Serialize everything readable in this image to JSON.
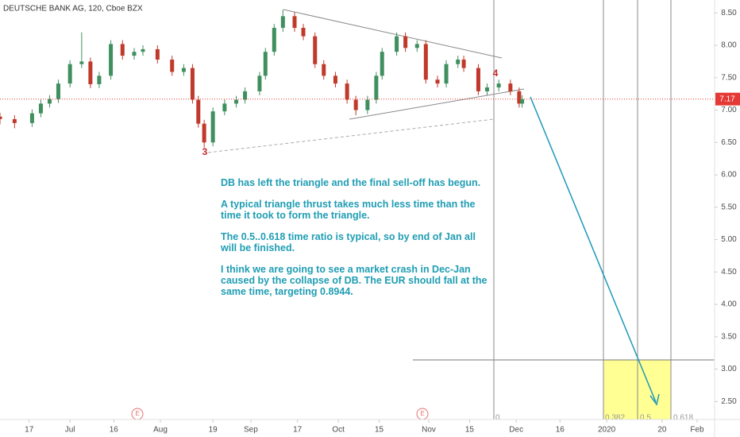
{
  "chart_data": {
    "type": "candlestick",
    "title": "DEUTSCHE BANK AG, 120, Cboe BZX",
    "x": [
      "2019-06-07",
      "2019-06-12",
      "2019-06-18",
      "2019-06-21",
      "2019-06-24",
      "2019-06-27",
      "2019-07-01",
      "2019-07-05",
      "2019-07-08",
      "2019-07-11",
      "2019-07-15",
      "2019-07-19",
      "2019-07-23",
      "2019-07-26",
      "2019-07-31",
      "2019-08-05",
      "2019-08-09",
      "2019-08-12",
      "2019-08-14",
      "2019-08-16",
      "2019-08-19",
      "2019-08-23",
      "2019-08-27",
      "2019-08-30",
      "2019-09-04",
      "2019-09-06",
      "2019-09-09",
      "2019-09-12",
      "2019-09-16",
      "2019-09-19",
      "2019-09-23",
      "2019-09-26",
      "2019-09-30",
      "2019-10-04",
      "2019-10-07",
      "2019-10-11",
      "2019-10-14",
      "2019-10-16",
      "2019-10-21",
      "2019-10-24",
      "2019-10-28",
      "2019-10-31",
      "2019-11-04",
      "2019-11-07",
      "2019-11-11",
      "2019-11-13",
      "2019-11-18",
      "2019-11-21",
      "2019-11-25",
      "2019-11-29",
      "2019-12-02",
      "2019-12-03"
    ],
    "open": [
      6.9,
      6.86,
      6.8,
      6.95,
      7.1,
      7.17,
      7.41,
      7.71,
      7.75,
      7.4,
      7.53,
      8.02,
      7.84,
      7.9,
      7.94,
      7.78,
      7.59,
      7.65,
      7.16,
      6.79,
      6.5,
      6.98,
      7.1,
      7.16,
      7.29,
      7.53,
      7.9,
      8.27,
      8.45,
      8.27,
      8.14,
      7.71,
      7.53,
      7.41,
      7.16,
      7.0,
      7.16,
      7.53,
      7.9,
      8.14,
      7.96,
      8.02,
      7.47,
      7.41,
      7.71,
      7.78,
      7.65,
      7.29,
      7.35,
      7.41,
      7.29,
      7.1
    ],
    "high": [
      6.96,
      6.92,
      7.01,
      7.16,
      7.23,
      7.47,
      7.77,
      8.2,
      7.81,
      7.59,
      8.08,
      8.08,
      7.96,
      8.0,
      8.0,
      7.84,
      7.71,
      7.71,
      7.22,
      6.85,
      7.04,
      7.16,
      7.22,
      7.35,
      7.59,
      7.96,
      8.33,
      8.55,
      8.51,
      8.33,
      8.2,
      7.77,
      7.59,
      7.47,
      7.22,
      7.22,
      7.59,
      7.96,
      8.2,
      8.2,
      8.08,
      8.08,
      7.53,
      7.77,
      7.84,
      7.84,
      7.71,
      7.41,
      7.47,
      7.47,
      7.35,
      7.23
    ],
    "low": [
      6.78,
      6.72,
      6.74,
      6.89,
      7.04,
      7.11,
      7.35,
      7.65,
      7.34,
      7.34,
      7.47,
      7.78,
      7.78,
      7.84,
      7.72,
      7.53,
      7.53,
      7.1,
      6.73,
      6.42,
      6.44,
      6.92,
      7.04,
      7.1,
      7.23,
      7.47,
      7.84,
      8.21,
      8.21,
      8.08,
      7.65,
      7.47,
      7.35,
      7.1,
      6.92,
      6.94,
      7.1,
      7.47,
      7.84,
      7.9,
      7.9,
      7.41,
      7.35,
      7.35,
      7.65,
      7.59,
      7.23,
      7.23,
      7.29,
      7.23,
      7.04,
      7.04
    ],
    "close": [
      6.86,
      6.8,
      6.95,
      7.1,
      7.17,
      7.41,
      7.71,
      7.75,
      7.4,
      7.53,
      8.02,
      7.84,
      7.9,
      7.94,
      7.78,
      7.59,
      7.65,
      7.16,
      6.79,
      6.5,
      6.98,
      7.1,
      7.16,
      7.29,
      7.53,
      7.9,
      8.27,
      8.45,
      8.27,
      8.14,
      7.71,
      7.53,
      7.41,
      7.16,
      7.0,
      7.16,
      7.53,
      7.9,
      8.14,
      7.96,
      8.02,
      7.47,
      7.41,
      7.71,
      7.78,
      7.65,
      7.29,
      7.35,
      7.41,
      7.29,
      7.1,
      7.17
    ],
    "up_color": "#3f8f5f",
    "down_color": "#c0392b",
    "last_price": 7.17,
    "last_price_color": "#e53935",
    "xlim": [
      "2019-06-07",
      "2020-02-07"
    ],
    "xticks": [
      {
        "value": "2019-06-17",
        "label": "17"
      },
      {
        "value": "2019-07-01",
        "label": "Jul"
      },
      {
        "value": "2019-07-16",
        "label": "16"
      },
      {
        "value": "2019-08-01",
        "label": "Aug"
      },
      {
        "value": "2019-08-19",
        "label": "19"
      },
      {
        "value": "2019-09-01",
        "label": "Sep"
      },
      {
        "value": "2019-09-17",
        "label": "17"
      },
      {
        "value": "2019-10-01",
        "label": "Oct"
      },
      {
        "value": "2019-10-15",
        "label": "15"
      },
      {
        "value": "2019-11-01",
        "label": "Nov"
      },
      {
        "value": "2019-11-15",
        "label": "15"
      },
      {
        "value": "2019-12-01",
        "label": "Dec"
      },
      {
        "value": "2019-12-16",
        "label": "16"
      },
      {
        "value": "2020-01-01",
        "label": "2020"
      },
      {
        "value": "2020-01-20",
        "label": "20"
      },
      {
        "value": "2020-02-01",
        "label": "Feb"
      }
    ],
    "ylim": [
      2.32,
      8.7
    ],
    "yticks": [
      {
        "value": 8.5,
        "label": "8.50"
      },
      {
        "value": 8,
        "label": "8.00"
      },
      {
        "value": 7.5,
        "label": "7.50"
      },
      {
        "value": 7,
        "label": "7.00"
      },
      {
        "value": 6.5,
        "label": "6.50"
      },
      {
        "value": 6,
        "label": "6.00"
      },
      {
        "value": 5.5,
        "label": "5.50"
      },
      {
        "value": 5,
        "label": "5.00"
      },
      {
        "value": 4.5,
        "label": "4.50"
      },
      {
        "value": 4,
        "label": "4.00"
      },
      {
        "value": 3.5,
        "label": "3.50"
      },
      {
        "value": 3,
        "label": "3.00"
      },
      {
        "value": 2.5,
        "label": "2.50"
      }
    ],
    "wave_labels": [
      "3",
      "4"
    ],
    "earnings_markers": [
      "E",
      "E"
    ],
    "fib_labels": [
      "0",
      "0.382",
      "0.5",
      "0.618"
    ],
    "note": [
      "DB has left the triangle and the final sell-off has begun.",
      "A typical triangle thrust takes much less time than the time it took to form the triangle.",
      "The 0.5..0.618 time ratio is typical, so by end of Jan all will be finished.",
      "I think we are going to see a market crash in Dec-Jan caused by the collapse of DB. The EUR should fall at the same time, targeting 0.8944."
    ]
  }
}
